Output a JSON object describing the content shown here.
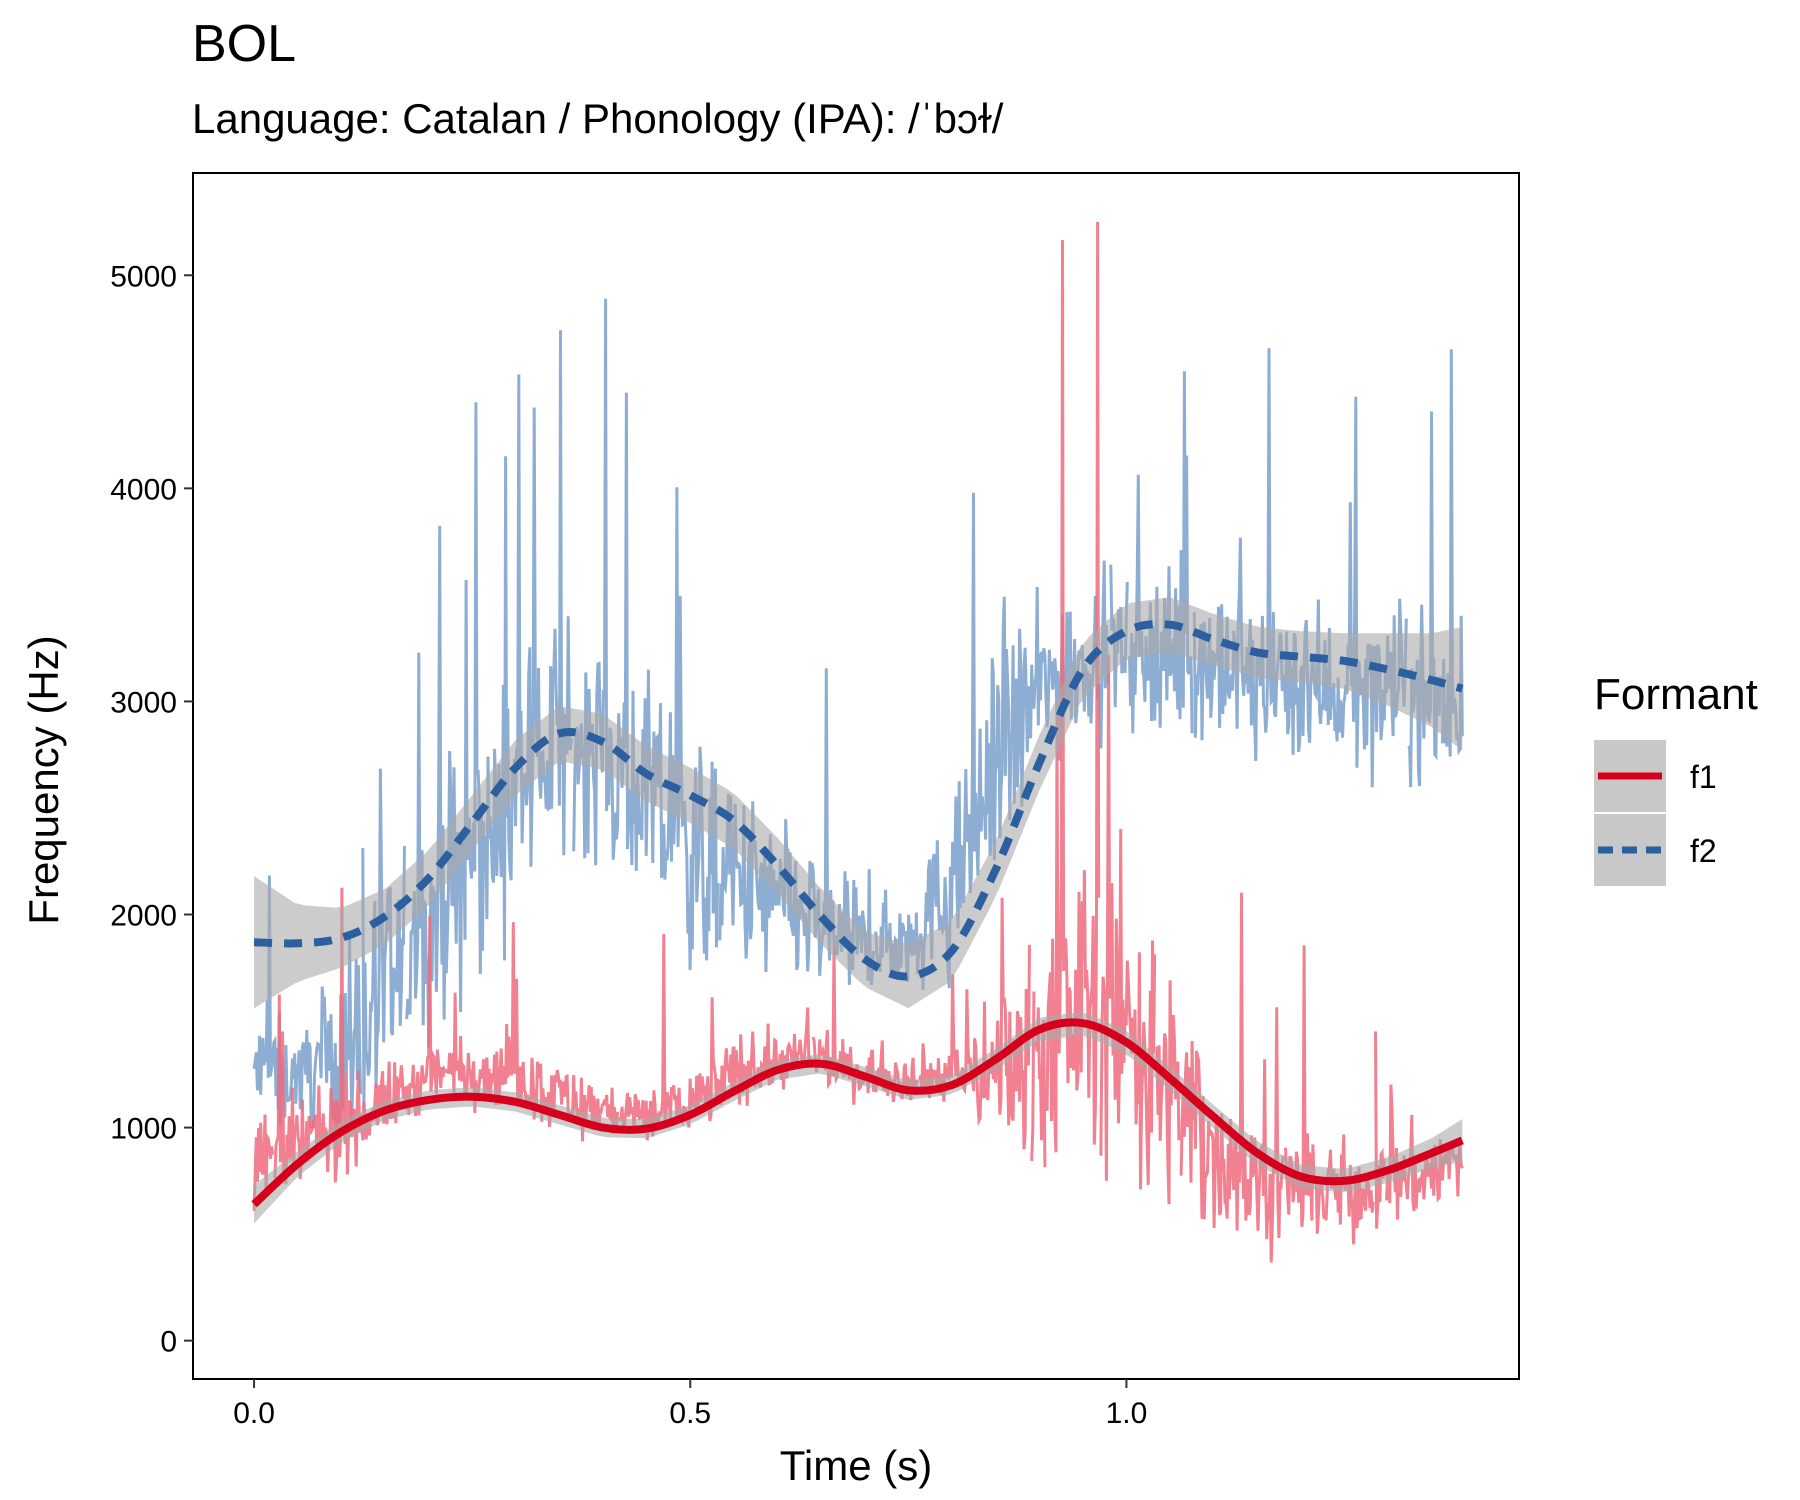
{
  "colors": {
    "f1": "#D7001C",
    "f1_raw": "#EE6B7C",
    "f2": "#2C5FA0",
    "f2_raw": "#7A9FCB",
    "ribbon": "#AAAAAA"
  },
  "chart_data": {
    "type": "line",
    "title": "BOL",
    "subtitle": "Language: Catalan / Phonology (IPA): /ˈbɔɫ/",
    "xlabel": "Time (s)",
    "ylabel": "Frequency (Hz)",
    "xlim": [
      -0.07,
      1.45
    ],
    "ylim": [
      -180,
      5480
    ],
    "x_ticks": [
      0.0,
      0.5,
      1.0
    ],
    "x_tick_labels": [
      "0.0",
      "0.5",
      "1.0"
    ],
    "y_ticks": [
      0,
      1000,
      2000,
      3000,
      4000,
      5000
    ],
    "y_tick_labels": [
      "0",
      "1000",
      "2000",
      "3000",
      "4000",
      "5000"
    ],
    "grid": false,
    "legend": {
      "title": "Formant",
      "position": "right",
      "entries": [
        "f1",
        "f2"
      ]
    },
    "x_range_raw": [
      0.0,
      1.385
    ],
    "series": [
      {
        "name": "f1",
        "line_style": "solid",
        "smooth_x": [
          0.0,
          0.05,
          0.1,
          0.15,
          0.2,
          0.25,
          0.3,
          0.35,
          0.4,
          0.45,
          0.5,
          0.55,
          0.6,
          0.65,
          0.7,
          0.75,
          0.8,
          0.85,
          0.9,
          0.95,
          1.0,
          1.05,
          1.1,
          1.15,
          1.2,
          1.25,
          1.3,
          1.35,
          1.385
        ],
        "smooth_y": [
          640,
          830,
          980,
          1080,
          1130,
          1145,
          1120,
          1060,
          1000,
          995,
          1060,
          1170,
          1270,
          1300,
          1240,
          1175,
          1200,
          1320,
          1460,
          1490,
          1400,
          1230,
          1050,
          880,
          770,
          750,
          800,
          880,
          940
        ],
        "ribbon_halfwidth": [
          90,
          60,
          50,
          45,
          45,
          45,
          45,
          45,
          45,
          45,
          45,
          45,
          45,
          45,
          45,
          45,
          45,
          50,
          55,
          55,
          55,
          55,
          55,
          55,
          55,
          55,
          60,
          70,
          100
        ],
        "raw_mean": [
          850,
          900,
          1000,
          1120,
          1230,
          1280,
          1250,
          1150,
          1080,
          1050,
          1120,
          1250,
          1320,
          1310,
          1260,
          1240,
          1250,
          1270,
          1400,
          1600,
          1500,
          1150,
          900,
          760,
          700,
          700,
          740,
          800,
          850
        ],
        "raw_spread": [
          320,
          300,
          260,
          220,
          200,
          200,
          200,
          200,
          180,
          180,
          200,
          200,
          180,
          160,
          150,
          150,
          160,
          400,
          700,
          900,
          900,
          700,
          500,
          350,
          300,
          280,
          260,
          260,
          260
        ]
      },
      {
        "name": "f2",
        "line_style": "dashed",
        "smooth_x": [
          0.0,
          0.05,
          0.1,
          0.15,
          0.2,
          0.25,
          0.3,
          0.35,
          0.4,
          0.45,
          0.5,
          0.55,
          0.6,
          0.65,
          0.7,
          0.75,
          0.8,
          0.85,
          0.9,
          0.95,
          1.0,
          1.05,
          1.1,
          1.15,
          1.2,
          1.25,
          1.3,
          1.35,
          1.385
        ],
        "smooth_y": [
          1870,
          1865,
          1890,
          1990,
          2170,
          2430,
          2690,
          2850,
          2810,
          2660,
          2560,
          2440,
          2230,
          1990,
          1790,
          1710,
          1830,
          2210,
          2710,
          3150,
          3330,
          3360,
          3290,
          3230,
          3210,
          3190,
          3150,
          3100,
          3060
        ],
        "ribbon_halfwidth": [
          310,
          180,
          140,
          130,
          130,
          130,
          130,
          130,
          130,
          130,
          130,
          130,
          130,
          130,
          130,
          150,
          140,
          130,
          130,
          130,
          130,
          130,
          120,
          120,
          120,
          130,
          170,
          220,
          290
        ],
        "raw_mean": [
          1250,
          1250,
          1350,
          1600,
          1950,
          2250,
          2550,
          2800,
          2800,
          2550,
          2300,
          2150,
          2050,
          1950,
          1850,
          1900,
          2100,
          2700,
          3050,
          3200,
          3250,
          3250,
          3150,
          3100,
          3100,
          3050,
          3050,
          3000,
          3000
        ],
        "raw_spread": [
          350,
          300,
          450,
          600,
          650,
          700,
          650,
          600,
          650,
          650,
          650,
          600,
          500,
          400,
          300,
          300,
          500,
          650,
          500,
          450,
          450,
          450,
          450,
          450,
          450,
          450,
          450,
          500,
          500
        ]
      }
    ]
  }
}
